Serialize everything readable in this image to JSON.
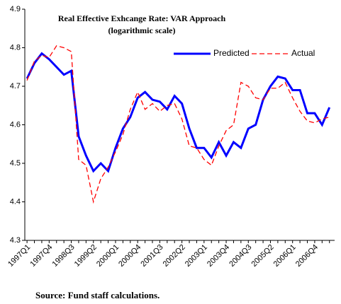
{
  "chart_data": {
    "type": "line",
    "title": "Real Effective Exhcange Rate: VAR Approach",
    "subtitle": "(logarithmic scale)",
    "source": "Source: Fund staff calculations.",
    "categories": [
      "1997Q1",
      null,
      null,
      "1997Q4",
      null,
      null,
      "1998Q3",
      null,
      null,
      "1999Q2",
      null,
      null,
      "2000Q1",
      null,
      null,
      "2000Q4",
      null,
      null,
      "2001Q3",
      null,
      null,
      "2002Q2",
      null,
      null,
      "2003Q1",
      null,
      null,
      "2003Q4",
      null,
      null,
      "2004Q3",
      null,
      null,
      "2005Q2",
      null,
      null,
      "2006Q1",
      null,
      null,
      "2006Q4",
      null,
      null
    ],
    "series": [
      {
        "name": "Predicted",
        "color": "#0000ff",
        "style": "solid",
        "values": [
          4.72,
          4.76,
          4.785,
          4.77,
          4.75,
          4.73,
          4.74,
          4.57,
          4.52,
          4.48,
          4.5,
          4.48,
          4.54,
          4.59,
          4.62,
          4.67,
          4.685,
          4.665,
          4.66,
          4.64,
          4.675,
          4.655,
          4.59,
          4.54,
          4.54,
          4.515,
          4.555,
          4.52,
          4.555,
          4.54,
          4.59,
          4.6,
          4.665,
          4.7,
          4.725,
          4.72,
          4.69,
          4.69,
          4.63,
          4.63,
          4.6,
          4.645
        ]
      },
      {
        "name": "Actual",
        "color": "#ff0000",
        "style": "dashed",
        "values": [
          4.715,
          4.765,
          4.78,
          4.775,
          4.805,
          4.8,
          4.79,
          4.51,
          4.495,
          4.4,
          4.46,
          4.49,
          4.53,
          4.575,
          4.64,
          4.685,
          4.64,
          4.655,
          4.635,
          4.65,
          4.655,
          4.615,
          4.545,
          4.54,
          4.51,
          4.495,
          4.545,
          4.585,
          4.6,
          4.71,
          4.7,
          4.67,
          4.665,
          4.695,
          4.695,
          4.71,
          4.67,
          4.635,
          4.61,
          4.605,
          4.615,
          4.62
        ]
      }
    ],
    "ylim": [
      4.3,
      4.9
    ],
    "yticks": [
      4.3,
      4.4,
      4.5,
      4.6,
      4.7,
      4.8,
      4.9
    ],
    "legend": "upper right",
    "grid": false
  }
}
